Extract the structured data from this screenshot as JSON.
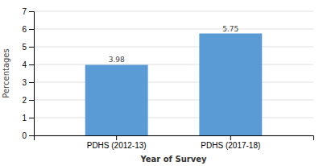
{
  "chart_data": {
    "type": "bar",
    "categories": [
      "PDHS (2012-13)",
      "PDHS (2017-18)"
    ],
    "values": [
      3.98,
      5.75
    ],
    "color": "#5B9BD5",
    "xlabel": "Year of Survey",
    "ylabel": "Percentages",
    "ylim": [
      0,
      7
    ],
    "yticks": [
      0,
      1,
      2,
      3,
      4,
      5,
      6,
      7
    ],
    "grid": true,
    "data_labels": true
  }
}
